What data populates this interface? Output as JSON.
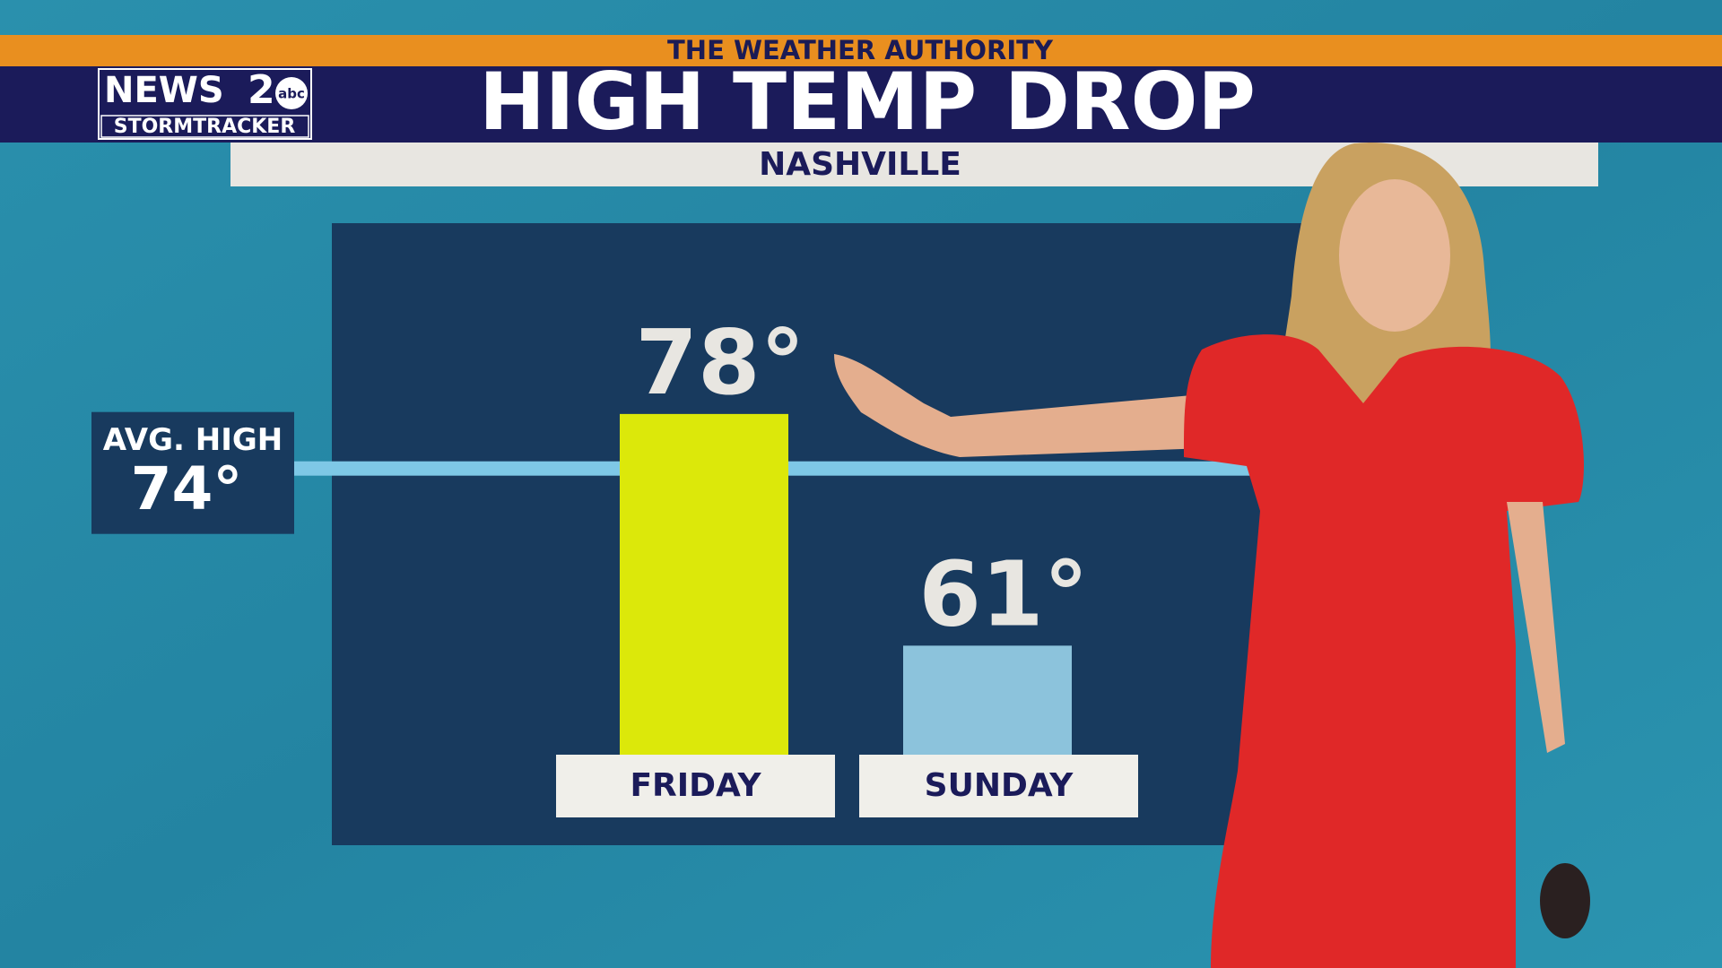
{
  "header": {
    "tagline": "THE WEATHER AUTHORITY",
    "title": "HIGH TEMP DROP",
    "subtitle": "NASHVILLE"
  },
  "logo": {
    "line1": "NEWS",
    "number": "2",
    "network": "abc",
    "line2": "STORMTRACKER"
  },
  "chart_data": {
    "type": "bar",
    "categories": [
      "FRIDAY",
      "SUNDAY"
    ],
    "values": [
      78,
      61
    ],
    "value_labels": [
      "78°",
      "61°"
    ],
    "colors": [
      "#dce80a",
      "#8cc3dc"
    ],
    "ylim": [
      53,
      92
    ],
    "reference": {
      "label": "AVG. HIGH",
      "value": 74,
      "value_label": "74°",
      "color": "#7ec8e6"
    }
  }
}
